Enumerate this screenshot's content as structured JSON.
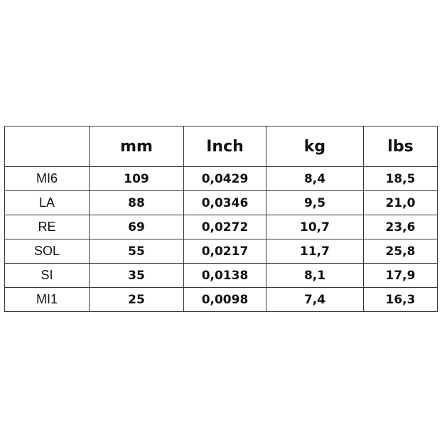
{
  "table": {
    "headers": [
      "",
      "mm",
      "Inch",
      "kg",
      "lbs"
    ],
    "rows": [
      [
        "MI6",
        "109",
        "0,0429",
        "8,4",
        "18,5"
      ],
      [
        "LA",
        "88",
        "0,0346",
        "9,5",
        "21,0"
      ],
      [
        "RE",
        "69",
        "0,0272",
        "10,7",
        "23,6"
      ],
      [
        "SOL",
        "55",
        "0,0217",
        "11,7",
        "25,8"
      ],
      [
        "SI",
        "35",
        "0,0138",
        "8,1",
        "17,9"
      ],
      [
        "MI1",
        "25",
        "0,0098",
        "7,4",
        "16,3"
      ]
    ]
  }
}
